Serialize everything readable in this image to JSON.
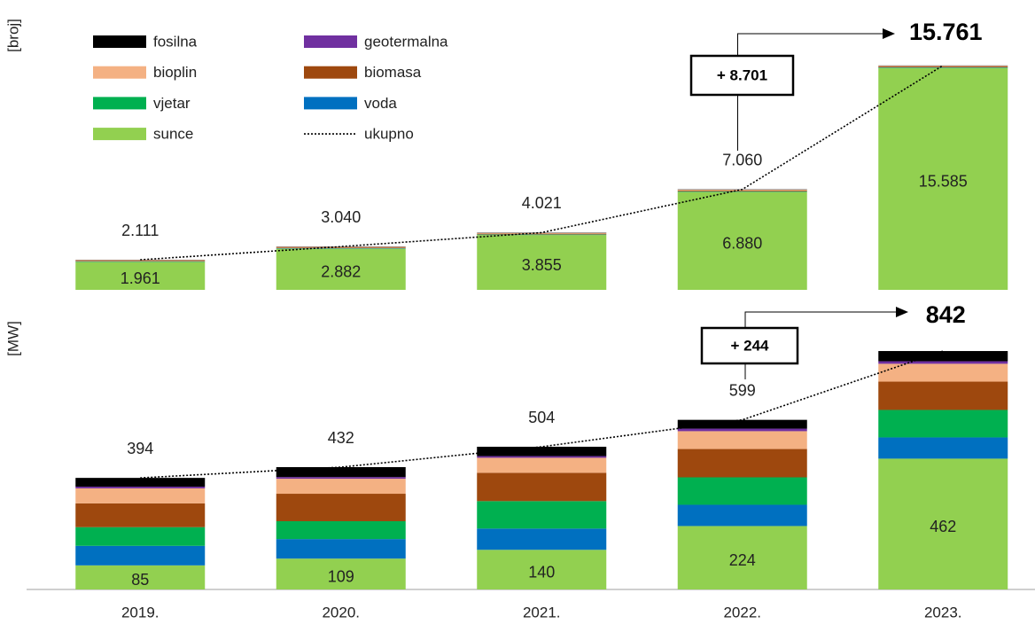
{
  "chart_data": [
    {
      "type": "bar",
      "stacked": true,
      "ylabel": "[broj]",
      "ylim": [
        0,
        16500
      ],
      "annotation": "+ 8.701",
      "series": [
        {
          "name": "sunce",
          "color": "#92d050",
          "values": [
            1961,
            2882,
            3855,
            6880,
            15585
          ],
          "value_labels": [
            "1.961",
            "2.882",
            "3.855",
            "6.880",
            "15.585"
          ]
        },
        {
          "name": "voda",
          "color": "#0070c0",
          "values": [
            20,
            20,
            20,
            20,
            20
          ]
        },
        {
          "name": "vjetar",
          "color": "#00b050",
          "values": [
            18,
            20,
            22,
            24,
            22
          ]
        },
        {
          "name": "biomasa",
          "color": "#9e480e",
          "values": [
            40,
            45,
            50,
            60,
            58
          ]
        },
        {
          "name": "bioplin",
          "color": "#f4b183",
          "values": [
            50,
            50,
            50,
            52,
            52
          ]
        },
        {
          "name": "geotermalna",
          "color": "#7030a0",
          "values": [
            2,
            3,
            4,
            4,
            4
          ]
        },
        {
          "name": "fosilna",
          "color": "#000000",
          "values": [
            20,
            20,
            20,
            20,
            20
          ]
        },
        {
          "name": "ukupno",
          "type": "line",
          "color": "#000000",
          "values": [
            2111,
            3040,
            4021,
            7060,
            15761
          ],
          "value_labels": [
            "2.111",
            "3.040",
            "4.021",
            "7.060",
            "15.761"
          ]
        }
      ]
    },
    {
      "type": "bar",
      "stacked": true,
      "ylabel": "[MW]",
      "ylim": [
        0,
        900
      ],
      "annotation": "+ 244",
      "categories": [
        "2019.",
        "2020.",
        "2021.",
        "2022.",
        "2023."
      ],
      "series": [
        {
          "color": "#92d050",
          "values": [
            85,
            109,
            140,
            224,
            462
          ]
        },
        {
          "color": "#0070c0",
          "values": [
            69,
            69,
            75,
            75,
            75
          ]
        },
        {
          "color": "#00b050",
          "values": [
            66,
            63,
            97,
            97,
            97
          ]
        },
        {
          "color": "#9e480e",
          "values": [
            84,
            97,
            100,
            100,
            100
          ]
        },
        {
          "color": "#f4b183",
          "values": [
            53,
            53,
            53,
            63,
            63
          ]
        },
        {
          "color": "#7030a0",
          "values": [
            6,
            6,
            6,
            9,
            9
          ]
        },
        {
          "color": "#000000",
          "values": [
            31,
            35,
            33,
            31,
            36
          ]
        },
        {
          "type": "line",
          "color": "#000000",
          "values": [
            394,
            432,
            504,
            599,
            842
          ]
        }
      ]
    }
  ]
}
